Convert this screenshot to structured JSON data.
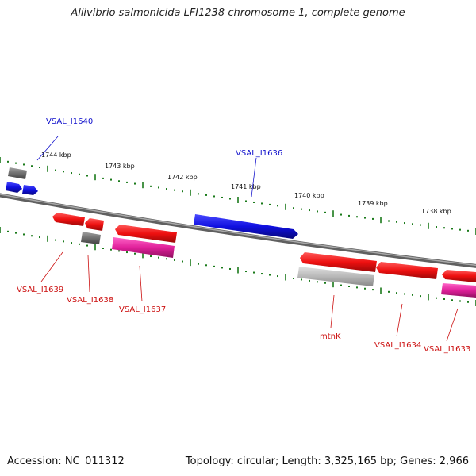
{
  "title": "Aliivibrio salmonicida LFI1238 chromosome 1, complete genome",
  "footer": {
    "accession": "Accession: NC_011312",
    "summary": "Topology: circular; Length: 3,325,165 bp; Genes: 2,966"
  },
  "colors": {
    "forward_gene": "#1010e0",
    "reverse_gene": "#ee1010",
    "rna_gene": "#e0209a",
    "pseudo_gene": "#707070",
    "light_gene": "#b8b8b8",
    "backbone": "#808080",
    "tick": "#1a7a1a",
    "label_forward": "#1010cc",
    "label_reverse": "#cc1010"
  },
  "kbp_labels": [
    "1744 kbp",
    "1743 kbp",
    "1742 kbp",
    "1741 kbp",
    "1740 kbp",
    "1739 kbp",
    "1738 kbp"
  ],
  "gene_labels": [
    {
      "name": "VSAL_I1640",
      "strand": "forward"
    },
    {
      "name": "VSAL_I1636",
      "strand": "forward"
    },
    {
      "name": "VSAL_I1639",
      "strand": "reverse"
    },
    {
      "name": "VSAL_I1638",
      "strand": "reverse"
    },
    {
      "name": "VSAL_I1637",
      "strand": "reverse"
    },
    {
      "name": "mtnK",
      "strand": "reverse"
    },
    {
      "name": "VSAL_I1634",
      "strand": "reverse"
    },
    {
      "name": "VSAL_I1633",
      "strand": "reverse"
    }
  ]
}
